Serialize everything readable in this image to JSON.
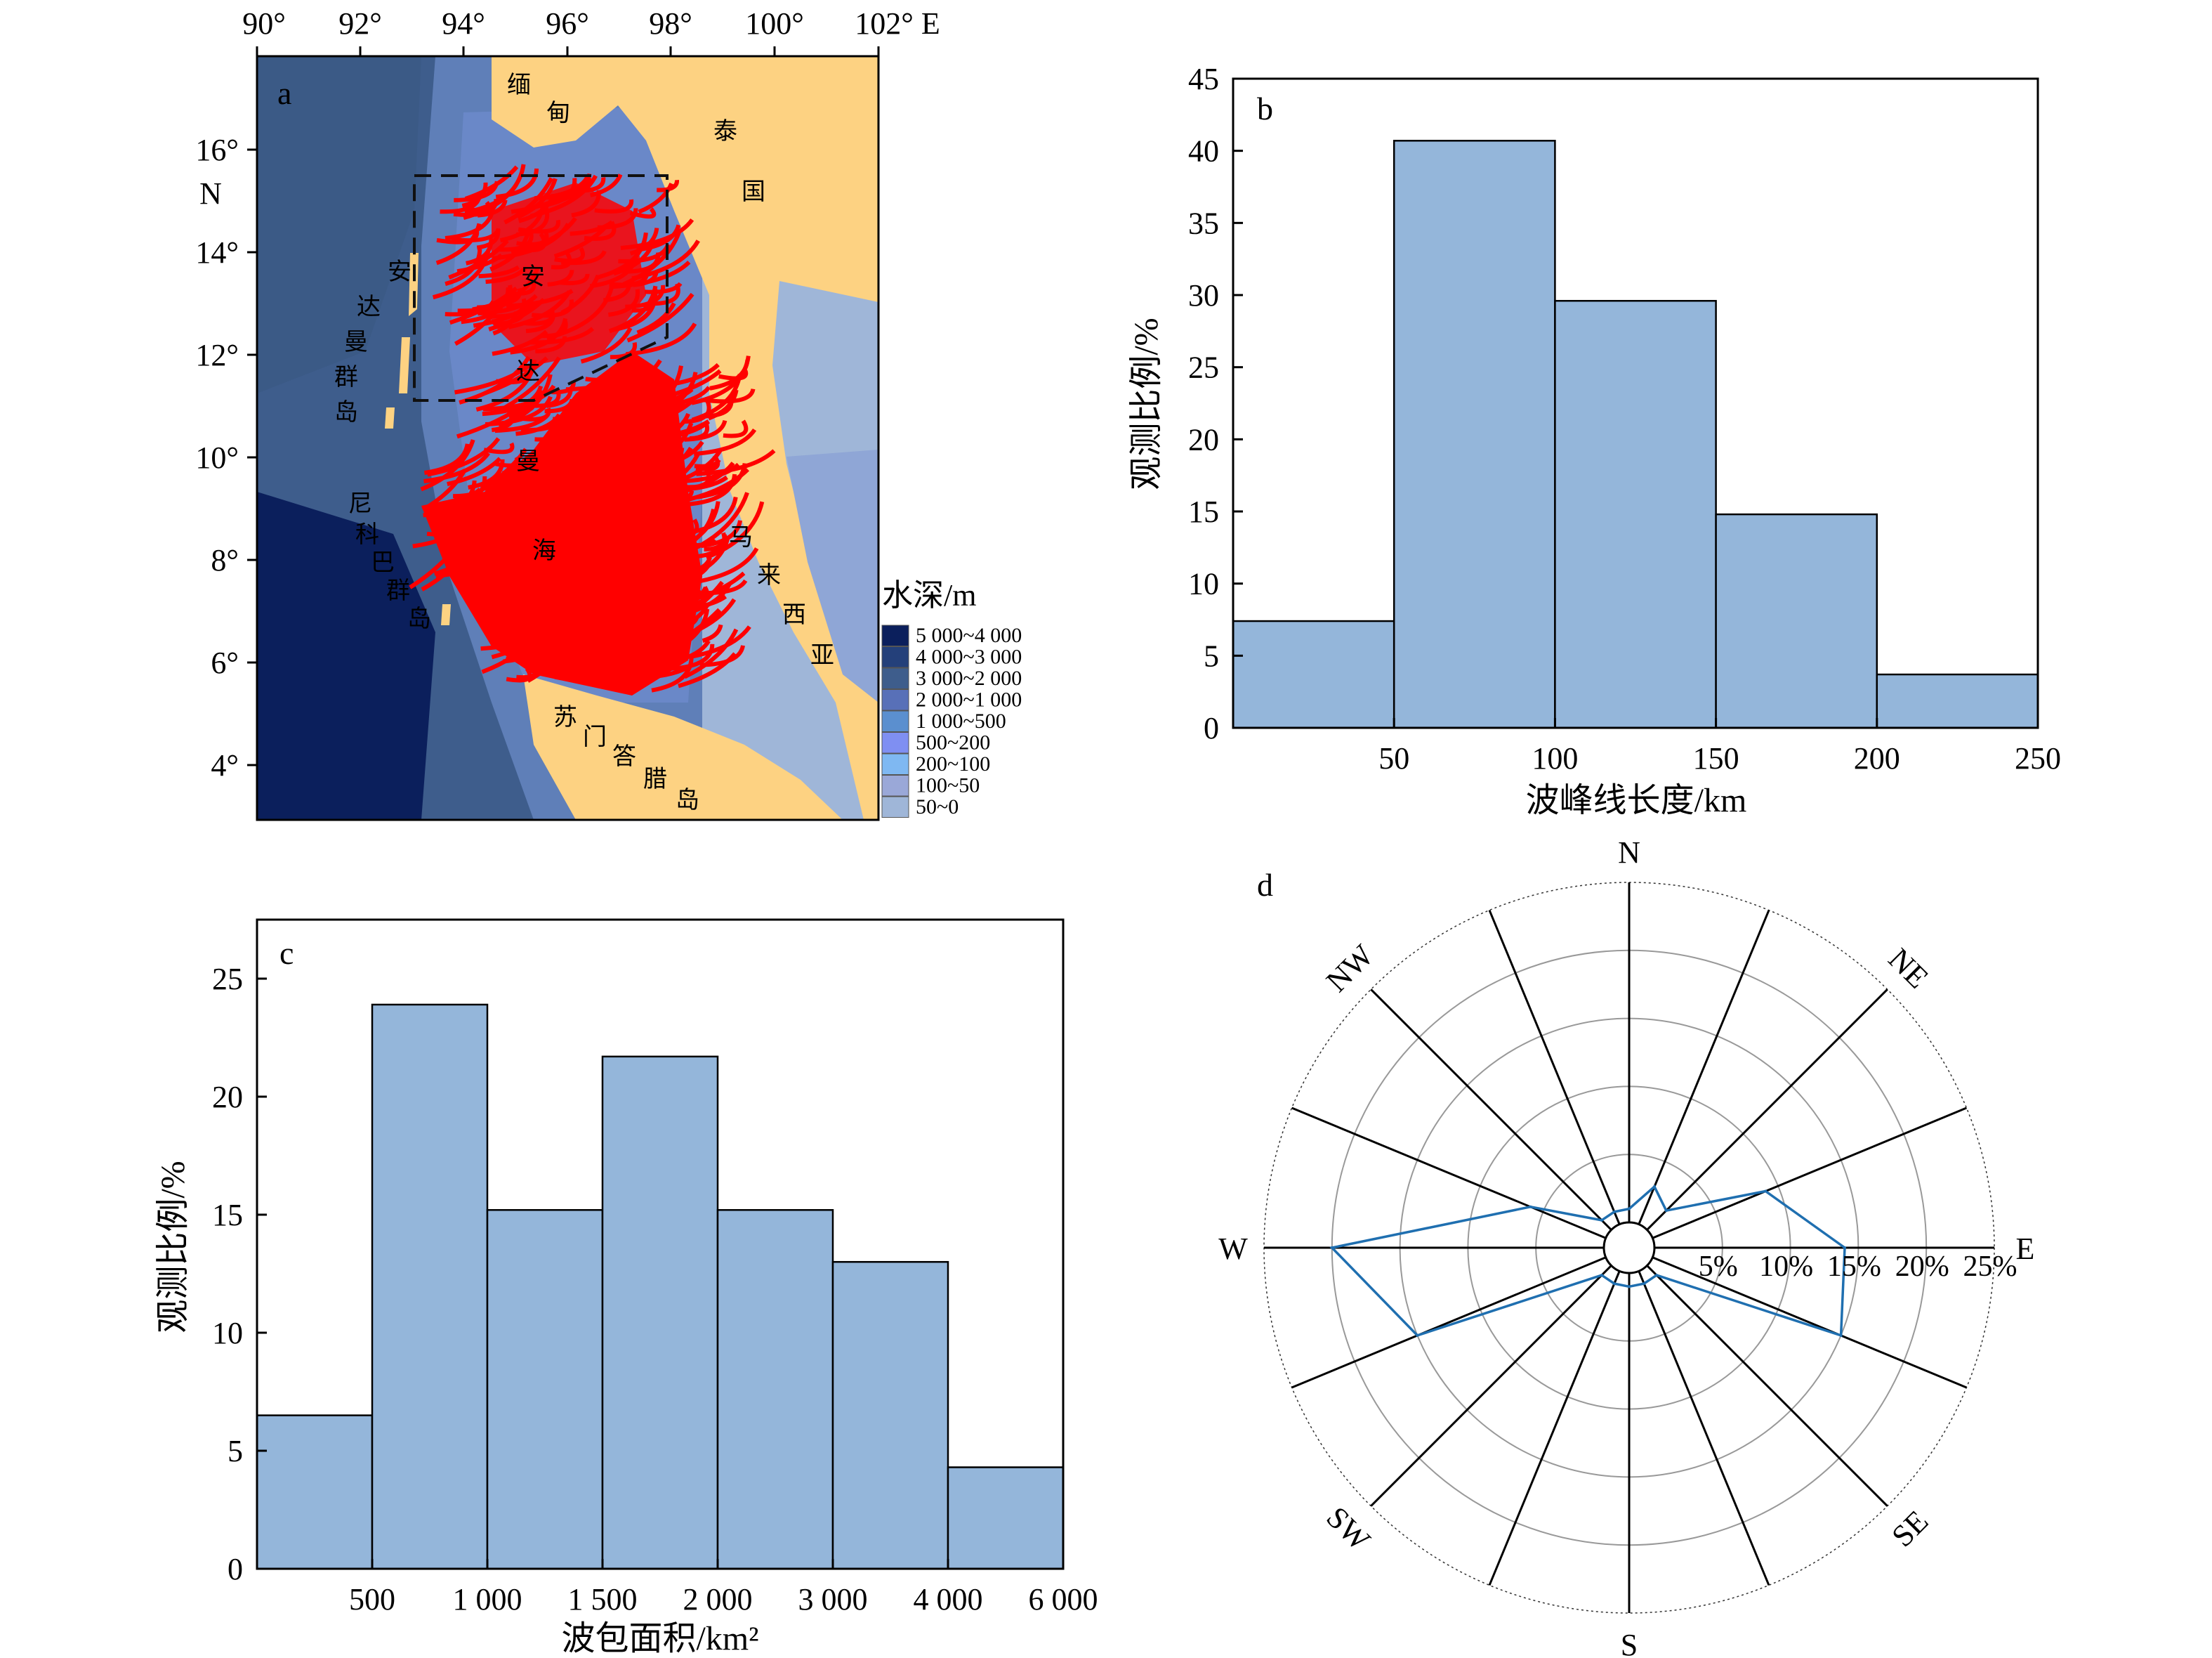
{
  "panel_a": {
    "letter": "a",
    "lon_ticks": [
      "90°",
      "92°",
      "94°",
      "96°",
      "98°",
      "100°",
      "102° E"
    ],
    "lat_ticks": [
      "16°",
      "14°",
      "12°",
      "10°",
      "8°",
      "6°",
      "4°"
    ],
    "lat_unit": "N",
    "place_labels": {
      "andaman_islands": [
        "安",
        "达",
        "曼",
        "群",
        "岛"
      ],
      "andaman_sea": [
        "安",
        "达",
        "曼",
        "海"
      ],
      "nicobar": [
        "尼",
        "科",
        "巴",
        "群",
        "岛"
      ],
      "myanmar": [
        "缅",
        "甸"
      ],
      "thailand": [
        "泰",
        "国"
      ],
      "malaysia": [
        "马",
        "来",
        "西",
        "亚"
      ],
      "sumatra": [
        "苏",
        "门",
        "答",
        "腊",
        "岛"
      ]
    },
    "legend": {
      "title": "水深/m",
      "items": [
        {
          "label": "5 000~4 000",
          "color": "#0b1f5c"
        },
        {
          "label": "4 000~3 000",
          "color": "#24407a"
        },
        {
          "label": "3 000~2 000",
          "color": "#3e5d8c"
        },
        {
          "label": "2 000~1 000",
          "color": "#5870b8"
        },
        {
          "label": "1 000~500",
          "color": "#5b8fcf"
        },
        {
          "label": "500~200",
          "color": "#7f8ff2"
        },
        {
          "label": "200~100",
          "color": "#7fb8f2"
        },
        {
          "label": "100~50",
          "color": "#9aa8d8"
        },
        {
          "label": "50~0",
          "color": "#9fb6d8"
        }
      ]
    },
    "colors": {
      "land": "#fdd282",
      "deep": "#0b1f5c",
      "mid": "#3e5d8c",
      "shelf": "#7a96d0",
      "shallow": "#9fb6d8",
      "waves": "#ff0000"
    }
  },
  "chart_data": [
    {
      "panel": "b",
      "type": "bar",
      "categories": [
        "0-50",
        "50-100",
        "100-150",
        "150-200",
        "200-250"
      ],
      "bins": [
        [
          0,
          50
        ],
        [
          50,
          100
        ],
        [
          100,
          150
        ],
        [
          150,
          200
        ],
        [
          200,
          250
        ]
      ],
      "values": [
        7.4,
        40.7,
        29.6,
        14.8,
        3.7
      ],
      "xlabel": "波峰线长度/km",
      "ylabel": "观测比例/%",
      "xticks": [
        "50",
        "100",
        "150",
        "200",
        "250"
      ],
      "yticks": [
        "0",
        "5",
        "10",
        "15",
        "20",
        "25",
        "30",
        "35",
        "40",
        "45"
      ],
      "ylim": [
        0,
        45
      ],
      "xlim": [
        0,
        250
      ],
      "bar_color": "#94b6da"
    },
    {
      "panel": "c",
      "type": "bar",
      "categories": [
        "0-500",
        "500-1 000",
        "1 000-1 500",
        "1 500-2 000",
        "2 000-3 000",
        "3 000-4 000",
        "4 000-6 000"
      ],
      "values": [
        6.5,
        23.9,
        15.2,
        21.7,
        15.2,
        13.0,
        4.3
      ],
      "xlabel": "波包面积/km²",
      "ylabel": "观测比例/%",
      "xticks": [
        "500",
        "1 000",
        "1 500",
        "2 000",
        "3 000",
        "4 000",
        "6 000"
      ],
      "yticks": [
        "0",
        "5",
        "10",
        "15",
        "20",
        "25"
      ],
      "ylim": [
        0,
        27.5
      ],
      "bar_color": "#94b6da"
    },
    {
      "panel": "d",
      "type": "radar",
      "directions": [
        "E",
        "ENE",
        "NE",
        "NNE",
        "N",
        "NNW",
        "NW",
        "WNW",
        "W",
        "WSW",
        "SW",
        "SSW",
        "S",
        "SSE",
        "SE",
        "ESE"
      ],
      "values": [
        14,
        9,
        2,
        3,
        1,
        1,
        1,
        6,
        20,
        15,
        1,
        1,
        1,
        1,
        1,
        15
      ],
      "direction_labels": [
        "N",
        "NE",
        "E",
        "SE",
        "S",
        "SW",
        "W",
        "NW"
      ],
      "ring_labels": [
        "5%",
        "10%",
        "15%",
        "20%",
        "25%"
      ],
      "rmax": 25,
      "line_color": "#1f6fb0"
    }
  ]
}
